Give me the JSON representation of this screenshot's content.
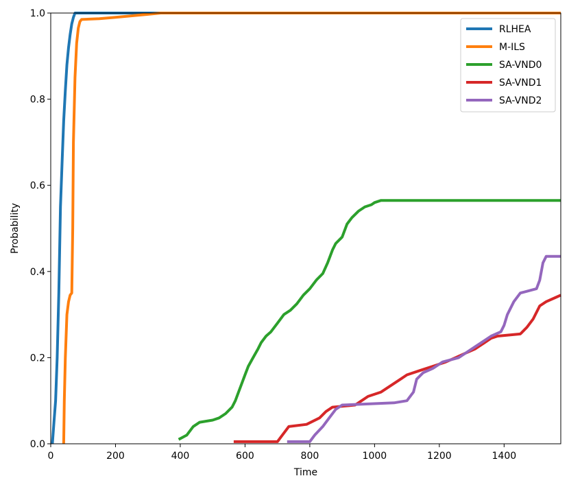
{
  "chart_data": {
    "type": "line",
    "title": "",
    "xlabel": "Time",
    "ylabel": "Probability",
    "xlim": [
      0,
      1575
    ],
    "ylim": [
      0,
      1.0
    ],
    "xticks": [
      0,
      200,
      400,
      600,
      800,
      1000,
      1200,
      1400
    ],
    "yticks": [
      0.0,
      0.2,
      0.4,
      0.6,
      0.8,
      1.0
    ],
    "xtick_labels": [
      "0",
      "200",
      "400",
      "600",
      "800",
      "1000",
      "1200",
      "1400"
    ],
    "ytick_labels": [
      "0.0",
      "0.2",
      "0.4",
      "0.6",
      "0.8",
      "1.0"
    ],
    "grid": false,
    "legend_position": "top-right",
    "series": [
      {
        "name": "RLHEA",
        "color": "#1f77b4",
        "points": [
          [
            5,
            0
          ],
          [
            10,
            0.05
          ],
          [
            15,
            0.1
          ],
          [
            20,
            0.2
          ],
          [
            25,
            0.35
          ],
          [
            30,
            0.55
          ],
          [
            35,
            0.65
          ],
          [
            40,
            0.75
          ],
          [
            45,
            0.82
          ],
          [
            50,
            0.88
          ],
          [
            55,
            0.92
          ],
          [
            60,
            0.95
          ],
          [
            65,
            0.975
          ],
          [
            70,
            0.99
          ],
          [
            75,
            1.0
          ],
          [
            1575,
            1.0
          ]
        ]
      },
      {
        "name": "M-ILS",
        "color": "#ff7f0e",
        "points": [
          [
            40,
            0
          ],
          [
            42,
            0.1
          ],
          [
            45,
            0.2
          ],
          [
            50,
            0.3
          ],
          [
            55,
            0.33
          ],
          [
            60,
            0.345
          ],
          [
            65,
            0.35
          ],
          [
            68,
            0.5
          ],
          [
            70,
            0.7
          ],
          [
            75,
            0.85
          ],
          [
            80,
            0.93
          ],
          [
            85,
            0.965
          ],
          [
            90,
            0.98
          ],
          [
            95,
            0.985
          ],
          [
            150,
            0.987
          ],
          [
            200,
            0.99
          ],
          [
            300,
            0.997
          ],
          [
            340,
            1.0
          ],
          [
            1575,
            1.0
          ]
        ]
      },
      {
        "name": "SA-VND0",
        "color": "#2ca02c",
        "points": [
          [
            395,
            0.01
          ],
          [
            420,
            0.02
          ],
          [
            440,
            0.04
          ],
          [
            460,
            0.05
          ],
          [
            500,
            0.055
          ],
          [
            520,
            0.06
          ],
          [
            540,
            0.07
          ],
          [
            560,
            0.085
          ],
          [
            570,
            0.1
          ],
          [
            580,
            0.12
          ],
          [
            590,
            0.14
          ],
          [
            600,
            0.16
          ],
          [
            610,
            0.18
          ],
          [
            625,
            0.2
          ],
          [
            640,
            0.22
          ],
          [
            650,
            0.235
          ],
          [
            665,
            0.25
          ],
          [
            680,
            0.26
          ],
          [
            700,
            0.28
          ],
          [
            720,
            0.3
          ],
          [
            740,
            0.31
          ],
          [
            760,
            0.325
          ],
          [
            780,
            0.345
          ],
          [
            800,
            0.36
          ],
          [
            820,
            0.38
          ],
          [
            840,
            0.395
          ],
          [
            855,
            0.42
          ],
          [
            870,
            0.45
          ],
          [
            880,
            0.465
          ],
          [
            900,
            0.48
          ],
          [
            915,
            0.51
          ],
          [
            930,
            0.525
          ],
          [
            950,
            0.54
          ],
          [
            970,
            0.55
          ],
          [
            990,
            0.555
          ],
          [
            1000,
            0.56
          ],
          [
            1020,
            0.565
          ],
          [
            1575,
            0.565
          ]
        ]
      },
      {
        "name": "SA-VND1",
        "color": "#d62728",
        "points": [
          [
            565,
            0.005
          ],
          [
            700,
            0.005
          ],
          [
            715,
            0.02
          ],
          [
            735,
            0.04
          ],
          [
            790,
            0.045
          ],
          [
            830,
            0.06
          ],
          [
            850,
            0.075
          ],
          [
            870,
            0.085
          ],
          [
            940,
            0.09
          ],
          [
            960,
            0.1
          ],
          [
            980,
            0.11
          ],
          [
            1020,
            0.12
          ],
          [
            1050,
            0.135
          ],
          [
            1080,
            0.15
          ],
          [
            1100,
            0.16
          ],
          [
            1140,
            0.17
          ],
          [
            1180,
            0.18
          ],
          [
            1220,
            0.19
          ],
          [
            1250,
            0.2
          ],
          [
            1280,
            0.21
          ],
          [
            1310,
            0.22
          ],
          [
            1340,
            0.235
          ],
          [
            1360,
            0.245
          ],
          [
            1380,
            0.25
          ],
          [
            1450,
            0.255
          ],
          [
            1470,
            0.27
          ],
          [
            1490,
            0.29
          ],
          [
            1510,
            0.32
          ],
          [
            1530,
            0.33
          ],
          [
            1560,
            0.34
          ],
          [
            1575,
            0.345
          ]
        ]
      },
      {
        "name": "SA-VND2",
        "color": "#9467bd",
        "points": [
          [
            730,
            0.005
          ],
          [
            800,
            0.005
          ],
          [
            815,
            0.02
          ],
          [
            840,
            0.04
          ],
          [
            860,
            0.06
          ],
          [
            880,
            0.08
          ],
          [
            900,
            0.09
          ],
          [
            1060,
            0.095
          ],
          [
            1100,
            0.1
          ],
          [
            1120,
            0.12
          ],
          [
            1130,
            0.15
          ],
          [
            1150,
            0.165
          ],
          [
            1180,
            0.175
          ],
          [
            1210,
            0.19
          ],
          [
            1260,
            0.2
          ],
          [
            1280,
            0.21
          ],
          [
            1310,
            0.225
          ],
          [
            1340,
            0.24
          ],
          [
            1360,
            0.25
          ],
          [
            1390,
            0.26
          ],
          [
            1400,
            0.275
          ],
          [
            1410,
            0.3
          ],
          [
            1430,
            0.33
          ],
          [
            1450,
            0.35
          ],
          [
            1500,
            0.36
          ],
          [
            1510,
            0.38
          ],
          [
            1520,
            0.42
          ],
          [
            1530,
            0.435
          ],
          [
            1575,
            0.435
          ]
        ]
      }
    ]
  }
}
